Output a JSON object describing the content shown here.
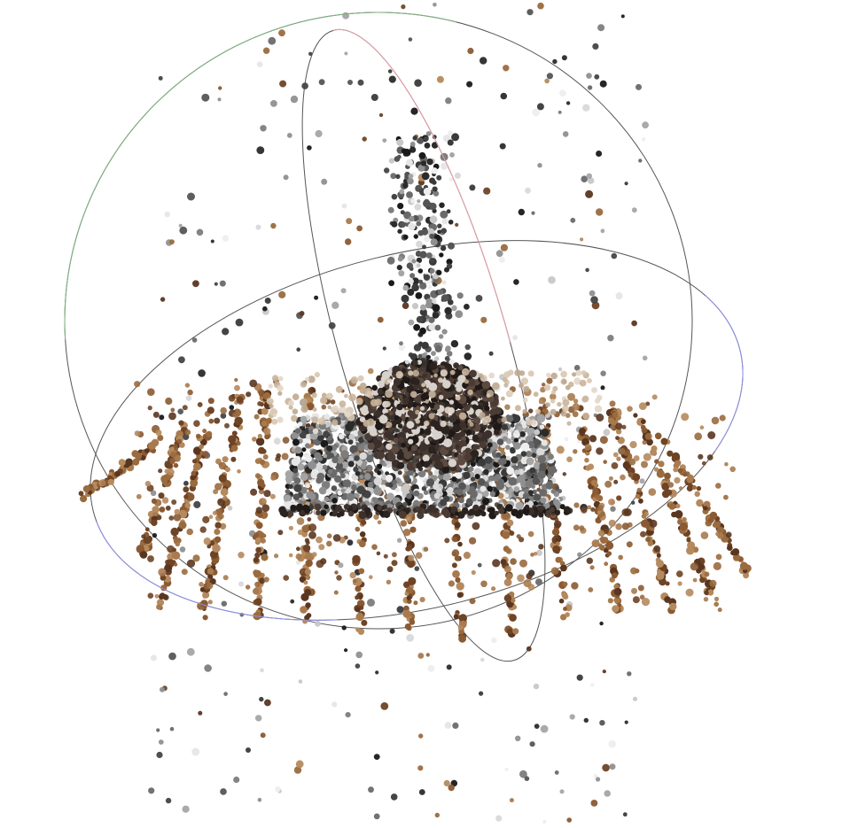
{
  "viewer": {
    "background": "#ffffff",
    "gizmo": {
      "ring_colors": {
        "x_axis": "#e8a0a8",
        "y_axis": "#7fb27f",
        "z_axis": "#8f8fe8",
        "hidden_segment": "#555555"
      }
    },
    "point_cloud": {
      "palette": {
        "wood": [
          "#8a5a33",
          "#9a6b3f",
          "#6e4426",
          "#a87b4f",
          "#5a3620",
          "#b58a5e"
        ],
        "dark": [
          "#1a1a1a",
          "#2b2b2b",
          "#3a3a3a",
          "#444444",
          "#555555"
        ],
        "grey": [
          "#6a6a6a",
          "#7d7d7d",
          "#909090",
          "#a5a5a5"
        ],
        "light": [
          "#c8c8c8",
          "#d9d9d9",
          "#e6e6e6",
          "#eeeeee"
        ],
        "object": [
          "#2a2320",
          "#3b302b",
          "#4a3c35",
          "#1f1a17",
          "#5c4a40",
          "#d8d2cc"
        ]
      }
    }
  }
}
